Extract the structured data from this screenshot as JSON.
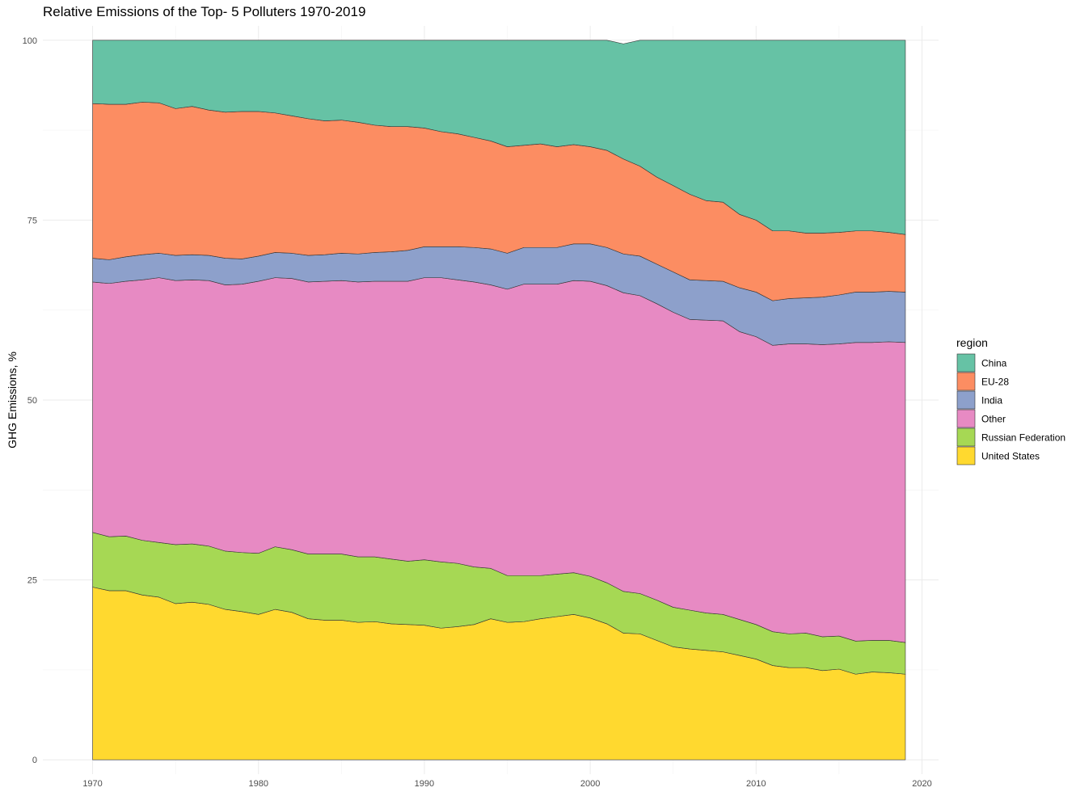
{
  "chart_data": {
    "type": "area",
    "stacked": "percent",
    "title": "Relative Emissions of the Top- 5 Polluters 1970-2019",
    "xlabel": "",
    "ylabel": "GHG Emissions, %",
    "xlim": [
      1967,
      2021
    ],
    "ylim": [
      -2,
      102
    ],
    "x_ticks": [
      1970,
      1980,
      1990,
      2000,
      2010,
      2020
    ],
    "y_ticks": [
      0,
      25,
      50,
      75,
      100
    ],
    "grid": true,
    "legend": {
      "title": "region",
      "position": "right"
    },
    "x": [
      1970,
      1971,
      1972,
      1973,
      1974,
      1975,
      1976,
      1977,
      1978,
      1979,
      1980,
      1981,
      1982,
      1983,
      1984,
      1985,
      1986,
      1987,
      1988,
      1989,
      1990,
      1991,
      1992,
      1993,
      1994,
      1995,
      1996,
      1997,
      1998,
      1999,
      2000,
      2001,
      2002,
      2003,
      2004,
      2005,
      2006,
      2007,
      2008,
      2009,
      2010,
      2011,
      2012,
      2013,
      2014,
      2015,
      2016,
      2017,
      2018,
      2019
    ],
    "stack_order_bottom_to_top": [
      "United States",
      "Russian Federation",
      "Other",
      "India",
      "EU-28",
      "China"
    ],
    "series": [
      {
        "name": "China",
        "color": "#66c2a5",
        "values": [
          8.8,
          8.9,
          8.9,
          8.6,
          8.7,
          9.5,
          9.2,
          9.7,
          10.0,
          9.9,
          9.9,
          10.1,
          10.5,
          10.9,
          11.2,
          11.1,
          11.4,
          11.8,
          12.0,
          12.0,
          12.2,
          12.7,
          13.0,
          13.5,
          14.0,
          14.8,
          14.6,
          14.4,
          14.8,
          14.5,
          14.8,
          15.3,
          16.0,
          17.5,
          19.0,
          20.2,
          21.4,
          22.3,
          22.5,
          24.2,
          25.0,
          26.5,
          26.5,
          26.8,
          26.8,
          26.7,
          26.5,
          26.5,
          26.7,
          27.0
        ]
      },
      {
        "name": "EU-28",
        "color": "#fc8d62",
        "values": [
          21.5,
          21.6,
          21.2,
          21.2,
          20.9,
          20.4,
          20.6,
          20.2,
          20.3,
          20.5,
          20.1,
          19.4,
          19.1,
          19.0,
          18.6,
          18.5,
          18.3,
          17.7,
          17.4,
          17.2,
          16.5,
          16.0,
          15.7,
          15.3,
          15.0,
          14.8,
          14.2,
          14.4,
          14.0,
          13.8,
          13.5,
          13.5,
          13.2,
          12.5,
          12.1,
          12.0,
          11.9,
          11.1,
          11.0,
          10.2,
          10.0,
          9.7,
          9.4,
          9.0,
          8.9,
          8.7,
          8.5,
          8.5,
          8.2,
          8.0
        ]
      },
      {
        "name": "India",
        "color": "#8da0cb",
        "values": [
          3.3,
          3.3,
          3.4,
          3.5,
          3.4,
          3.5,
          3.5,
          3.5,
          3.7,
          3.5,
          3.5,
          3.5,
          3.5,
          3.7,
          3.7,
          3.8,
          3.9,
          4.0,
          4.1,
          4.3,
          4.3,
          4.3,
          4.6,
          4.8,
          5.0,
          5.0,
          5.1,
          5.1,
          5.1,
          5.1,
          5.2,
          5.3,
          5.4,
          5.5,
          5.5,
          5.6,
          5.5,
          5.5,
          5.5,
          6.1,
          6.2,
          6.2,
          6.3,
          6.4,
          6.6,
          6.8,
          7.0,
          7.0,
          7.0,
          7.0
        ]
      },
      {
        "name": "Other",
        "color": "#e78ac3",
        "values": [
          34.8,
          35.2,
          35.4,
          36.2,
          36.8,
          36.7,
          36.7,
          36.9,
          37.0,
          37.3,
          37.8,
          37.4,
          37.7,
          37.8,
          37.9,
          38.0,
          38.2,
          38.3,
          38.6,
          38.9,
          39.2,
          39.5,
          39.4,
          39.6,
          39.4,
          39.8,
          40.5,
          40.5,
          40.3,
          40.6,
          41.0,
          41.3,
          41.5,
          41.4,
          41.2,
          41.0,
          40.4,
          40.7,
          40.8,
          40.0,
          40.0,
          39.8,
          40.3,
          40.2,
          40.6,
          40.6,
          41.5,
          41.4,
          41.5,
          41.7
        ]
      },
      {
        "name": "Russian Federation",
        "color": "#a6d854",
        "values": [
          7.6,
          7.5,
          7.6,
          7.6,
          7.6,
          8.2,
          8.1,
          8.1,
          8.1,
          8.2,
          8.5,
          8.7,
          8.7,
          9.0,
          9.2,
          9.2,
          9.1,
          9.0,
          9.0,
          8.8,
          9.1,
          9.2,
          8.8,
          8.0,
          7.0,
          6.5,
          6.4,
          6.0,
          5.9,
          5.8,
          5.8,
          5.7,
          5.8,
          5.6,
          5.6,
          5.5,
          5.4,
          5.2,
          5.2,
          5.0,
          4.8,
          4.7,
          4.7,
          4.8,
          4.7,
          4.6,
          4.6,
          4.4,
          4.5,
          4.4
        ]
      },
      {
        "name": "United States",
        "color": "#ffd92f",
        "values": [
          24.0,
          23.5,
          23.5,
          22.9,
          22.6,
          21.7,
          21.9,
          21.6,
          20.9,
          20.6,
          20.2,
          20.9,
          20.5,
          19.6,
          19.4,
          19.4,
          19.1,
          19.2,
          18.9,
          18.8,
          18.7,
          18.3,
          18.5,
          18.8,
          19.6,
          19.1,
          19.2,
          19.6,
          19.9,
          20.2,
          19.7,
          18.9,
          17.6,
          17.5,
          16.6,
          15.7,
          15.4,
          15.2,
          15.0,
          14.5,
          14.0,
          13.1,
          12.8,
          12.8,
          12.4,
          12.6,
          11.9,
          12.2,
          12.1,
          11.9
        ]
      }
    ]
  }
}
